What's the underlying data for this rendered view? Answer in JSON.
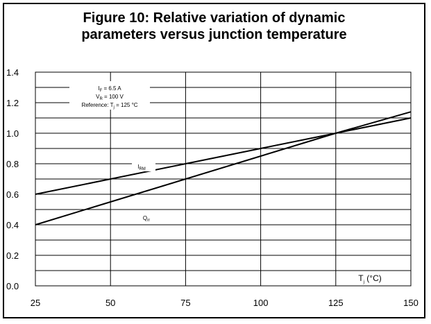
{
  "chart_data": {
    "type": "line",
    "title_lines": [
      "Figure 10: Relative variation of dynamic",
      "parameters versus junction temperature"
    ],
    "xlabel": {
      "main": "T",
      "sub": "j",
      "unit": " (°C)"
    },
    "xlim": [
      25,
      150
    ],
    "ylim": [
      0.0,
      1.4
    ],
    "x_ticks": [
      "25",
      "50",
      "75",
      "100",
      "125",
      "150"
    ],
    "y_ticks": [
      "0.0",
      "0.2",
      "0.4",
      "0.6",
      "0.8",
      "1.0",
      "1.2",
      "1.4"
    ],
    "x_ticks_num": [
      25,
      50,
      75,
      100,
      125,
      150
    ],
    "y_ticks_num": [
      0,
      0.2,
      0.4,
      0.6,
      0.8,
      1.0,
      1.2,
      1.4
    ],
    "grid": true,
    "annotation": {
      "line1": {
        "main": "I",
        "sub": "F",
        "rest": " = 6.5 A"
      },
      "line2": {
        "main": "V",
        "sub": "R",
        "rest": " = 100 V"
      },
      "line3": {
        "main": "Reference: T",
        "sub": "j",
        "rest": " = 125 °C"
      }
    },
    "series": [
      {
        "name": {
          "main": "I",
          "sub": "RM"
        },
        "x": [
          25,
          50,
          75,
          100,
          125,
          150
        ],
        "values": [
          0.6,
          0.7,
          0.8,
          0.9,
          1.0,
          1.1
        ]
      },
      {
        "name": {
          "main": "Q",
          "sub": "rr"
        },
        "x": [
          25,
          50,
          75,
          100,
          125,
          150
        ],
        "values": [
          0.4,
          0.55,
          0.7,
          0.85,
          1.0,
          1.14
        ]
      }
    ]
  }
}
